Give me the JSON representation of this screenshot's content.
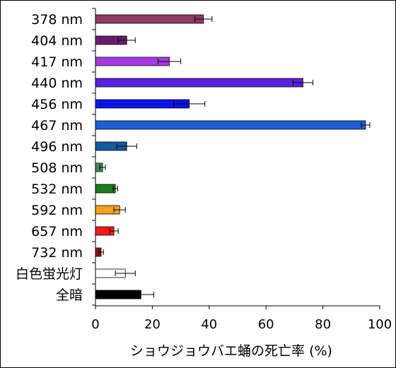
{
  "chart_data": {
    "type": "bar",
    "orientation": "horizontal",
    "categories": [
      "378 nm",
      "404 nm",
      "417 nm",
      "440 nm",
      "456 nm",
      "467 nm",
      "496 nm",
      "508 nm",
      "532 nm",
      "592 nm",
      "657 nm",
      "732 nm",
      "白色蛍光灯",
      "全暗"
    ],
    "values": [
      38,
      11,
      26,
      73,
      33,
      95,
      11,
      2.5,
      7,
      8.5,
      6.5,
      2,
      10.5,
      16
    ],
    "errors": [
      3,
      3,
      4,
      3.5,
      5.5,
      1.5,
      3.5,
      1,
      0.8,
      2,
      1.5,
      0.8,
      3.5,
      4.5
    ],
    "colors": [
      "#8E3A63",
      "#6A1B6E",
      "#A43BE0",
      "#5B1FE0",
      "#0A14E8",
      "#1C5FD2",
      "#135B9E",
      "#3F8F63",
      "#1E7A1E",
      "#F5A21C",
      "#EE1C1C",
      "#9A1212",
      "#FFFFFF",
      "#000000"
    ],
    "xlabel": "ショウジョウバエ蛹の死亡率 (%)",
    "xlim": [
      0,
      100
    ],
    "xticks": [
      0,
      20,
      40,
      60,
      80,
      100
    ],
    "grid": false,
    "legend": "none"
  }
}
